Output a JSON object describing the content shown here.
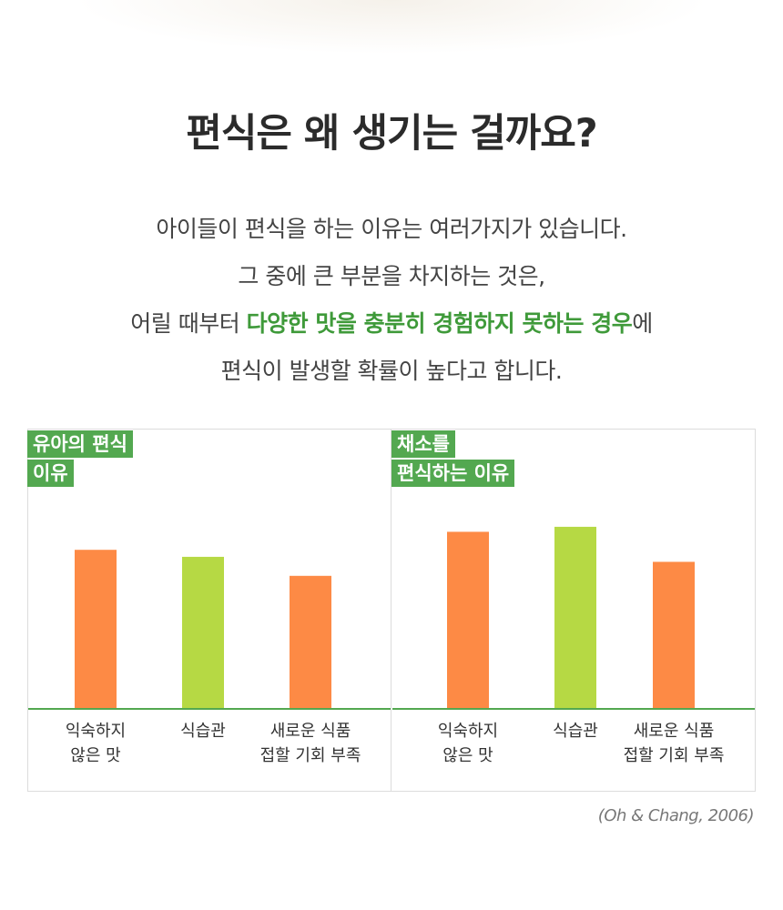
{
  "title": "편식은 왜 생기는 걸까요?",
  "description": {
    "line1": "아이들이 편식을 하는 이유는 여러가지가 있습니다.",
    "line2": "그 중에 큰 부분을 차지하는 것은,",
    "line3_before": "어릴 때부터 ",
    "line3_highlight": "다양한 맛을 충분히 경험하지 못하는 경우",
    "line3_after": "에",
    "line4": "편식이 발생할 확률이 높다고 합니다."
  },
  "colors": {
    "orange": "#fd8a45",
    "lime": "#b6d944",
    "green": "#53a850",
    "highlight": "#3f9a3a"
  },
  "source": "(Oh & Chang, 2006)",
  "chart_data": [
    {
      "type": "bar",
      "title_lines": [
        "유아의 편식",
        "이유"
      ],
      "categories": [
        [
          "익숙하지",
          "않은 맛"
        ],
        [
          "식습관"
        ],
        [
          "새로운 식품",
          "접할 기회 부족"
        ]
      ],
      "values": [
        158,
        151,
        132
      ],
      "bar_colors": [
        "#fd8a45",
        "#b6d944",
        "#fd8a45"
      ],
      "ylim": [
        0,
        200
      ],
      "grid": false
    },
    {
      "type": "bar",
      "title_lines": [
        "채소를",
        "편식하는 이유"
      ],
      "categories": [
        [
          "익숙하지",
          "않은 맛"
        ],
        [
          "식습관"
        ],
        [
          "새로운 식품",
          "접할 기회 부족"
        ]
      ],
      "values": [
        176,
        181,
        146
      ],
      "bar_colors": [
        "#fd8a45",
        "#b6d944",
        "#fd8a45"
      ],
      "ylim": [
        0,
        200
      ],
      "grid": false
    }
  ]
}
